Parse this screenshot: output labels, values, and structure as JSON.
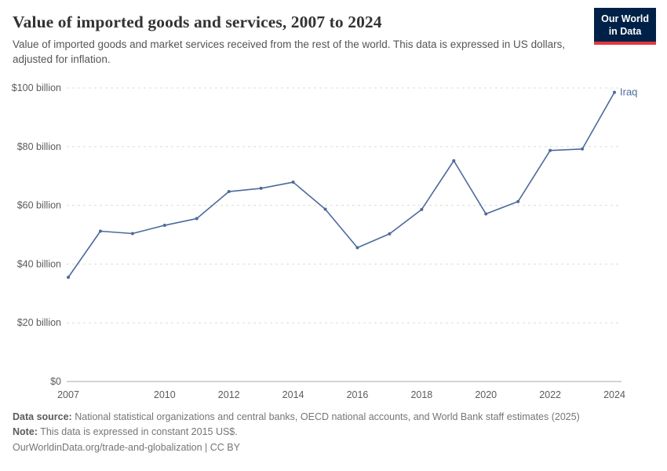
{
  "header": {
    "title": "Value of imported goods and services, 2007 to 2024",
    "subtitle": "Value of imported goods and market services received from the rest of the world. This data is expressed in US dollars, adjusted for inflation.",
    "logo": {
      "line1": "Our World",
      "line2": "in Data",
      "bg": "#002147",
      "accent": "#e0393e"
    }
  },
  "chart_data": {
    "type": "line",
    "title": "Value of imported goods and services, 2007 to 2024",
    "ylabel": "",
    "xlabel": "",
    "ylim": [
      0,
      100
    ],
    "yticks": [
      0,
      20,
      40,
      60,
      80,
      100
    ],
    "ytick_labels": [
      "$0",
      "$20 billion",
      "$40 billion",
      "$60 billion",
      "$80 billion",
      "$100 billion"
    ],
    "xticks": [
      2007,
      2010,
      2012,
      2014,
      2016,
      2018,
      2020,
      2022,
      2024
    ],
    "grid": "horizontal-dashed",
    "legend_position": "end-of-line-label",
    "x": [
      2007,
      2008,
      2009,
      2010,
      2011,
      2012,
      2013,
      2014,
      2015,
      2016,
      2017,
      2018,
      2019,
      2020,
      2021,
      2022,
      2023,
      2024
    ],
    "series": [
      {
        "name": "Iraq",
        "color": "#4c6a9c",
        "values": [
          35.5,
          51.2,
          50.4,
          53.2,
          55.5,
          64.7,
          65.8,
          67.9,
          58.7,
          45.6,
          50.3,
          58.6,
          75.2,
          57.1,
          61.3,
          78.7,
          79.2,
          98.5
        ]
      }
    ]
  },
  "footer": {
    "source_label": "Data source:",
    "source_text": "National statistical organizations and central banks, OECD national accounts, and World Bank staff estimates (2025)",
    "note_label": "Note:",
    "note_text": "This data is expressed in constant 2015 US$.",
    "citation": "OurWorldinData.org/trade-and-globalization | CC BY"
  }
}
